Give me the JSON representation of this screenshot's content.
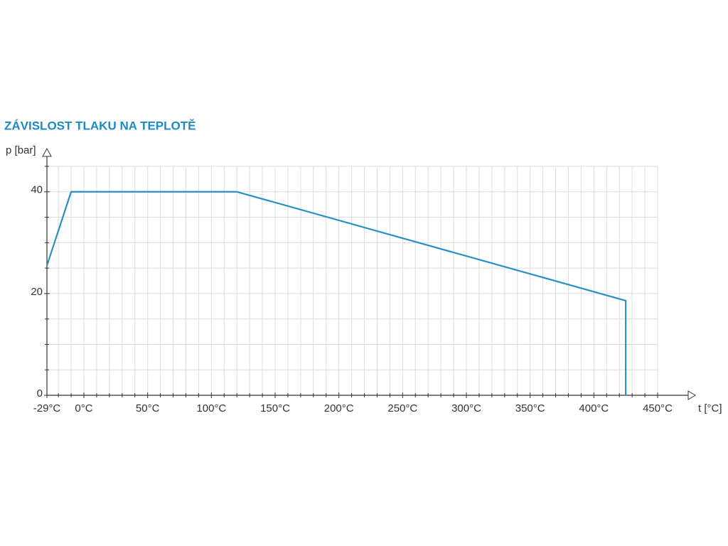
{
  "chart_data": {
    "type": "line",
    "title": "ZÁVISLOST TLAKU NA TEPLOTĚ",
    "ylabel": "p [bar]",
    "xlabel": "t [°C]",
    "series": [
      {
        "color": "#2a8fc4",
        "x": [
          -29,
          -10,
          120,
          425,
          425
        ],
        "values": [
          25.5,
          40,
          40,
          18.6,
          0
        ]
      }
    ],
    "xlim": [
      -29,
      450
    ],
    "ylim": [
      0,
      45
    ],
    "xticks": [
      {
        "value": -29,
        "label": "-29°C"
      },
      {
        "value": 0,
        "label": "0°C"
      },
      {
        "value": 50,
        "label": "50°C"
      },
      {
        "value": 100,
        "label": "100°C"
      },
      {
        "value": 150,
        "label": "150°C"
      },
      {
        "value": 200,
        "label": "200°C"
      },
      {
        "value": 250,
        "label": "250°C"
      },
      {
        "value": 300,
        "label": "300°C"
      },
      {
        "value": 350,
        "label": "350°C"
      },
      {
        "value": 400,
        "label": "400°C"
      },
      {
        "value": 450,
        "label": "450°C"
      }
    ],
    "yticks": [
      0,
      20,
      40
    ],
    "xminor": [
      -20,
      -10,
      10,
      20,
      30,
      40,
      60,
      70,
      80,
      90,
      110,
      120,
      130,
      140,
      160,
      170,
      180,
      190,
      210,
      220,
      230,
      240,
      260,
      270,
      280,
      290,
      310,
      320,
      330,
      340,
      360,
      370,
      380,
      390,
      410,
      420,
      430,
      440
    ],
    "yminor": [
      5,
      10,
      15,
      25,
      30,
      35,
      45
    ],
    "grid": true
  }
}
